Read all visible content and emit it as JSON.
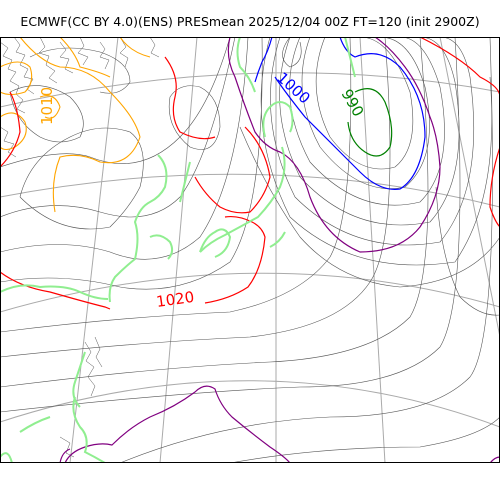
{
  "title": "ECMWF(CC BY 4.0)(ENS) PRESmean 2025/12/04 00Z FT=120 (init 2900Z)",
  "contour_labels": [
    {
      "value": "1020",
      "color": "#ff0000"
    },
    {
      "value": "1010",
      "color": "#ffa500"
    },
    {
      "value": "1000",
      "color": "#0000ff"
    },
    {
      "value": "990",
      "color": "#008000"
    }
  ],
  "colors": {
    "isobar_thin": "#555555",
    "contour_1020": "#ff0000",
    "contour_1010": "#ffa500",
    "contour_1000": "#0000ff",
    "contour_990": "#008000",
    "contour_purple": "#800080",
    "coastline": "#90ee90",
    "graticule": "#aaaaaa"
  }
}
